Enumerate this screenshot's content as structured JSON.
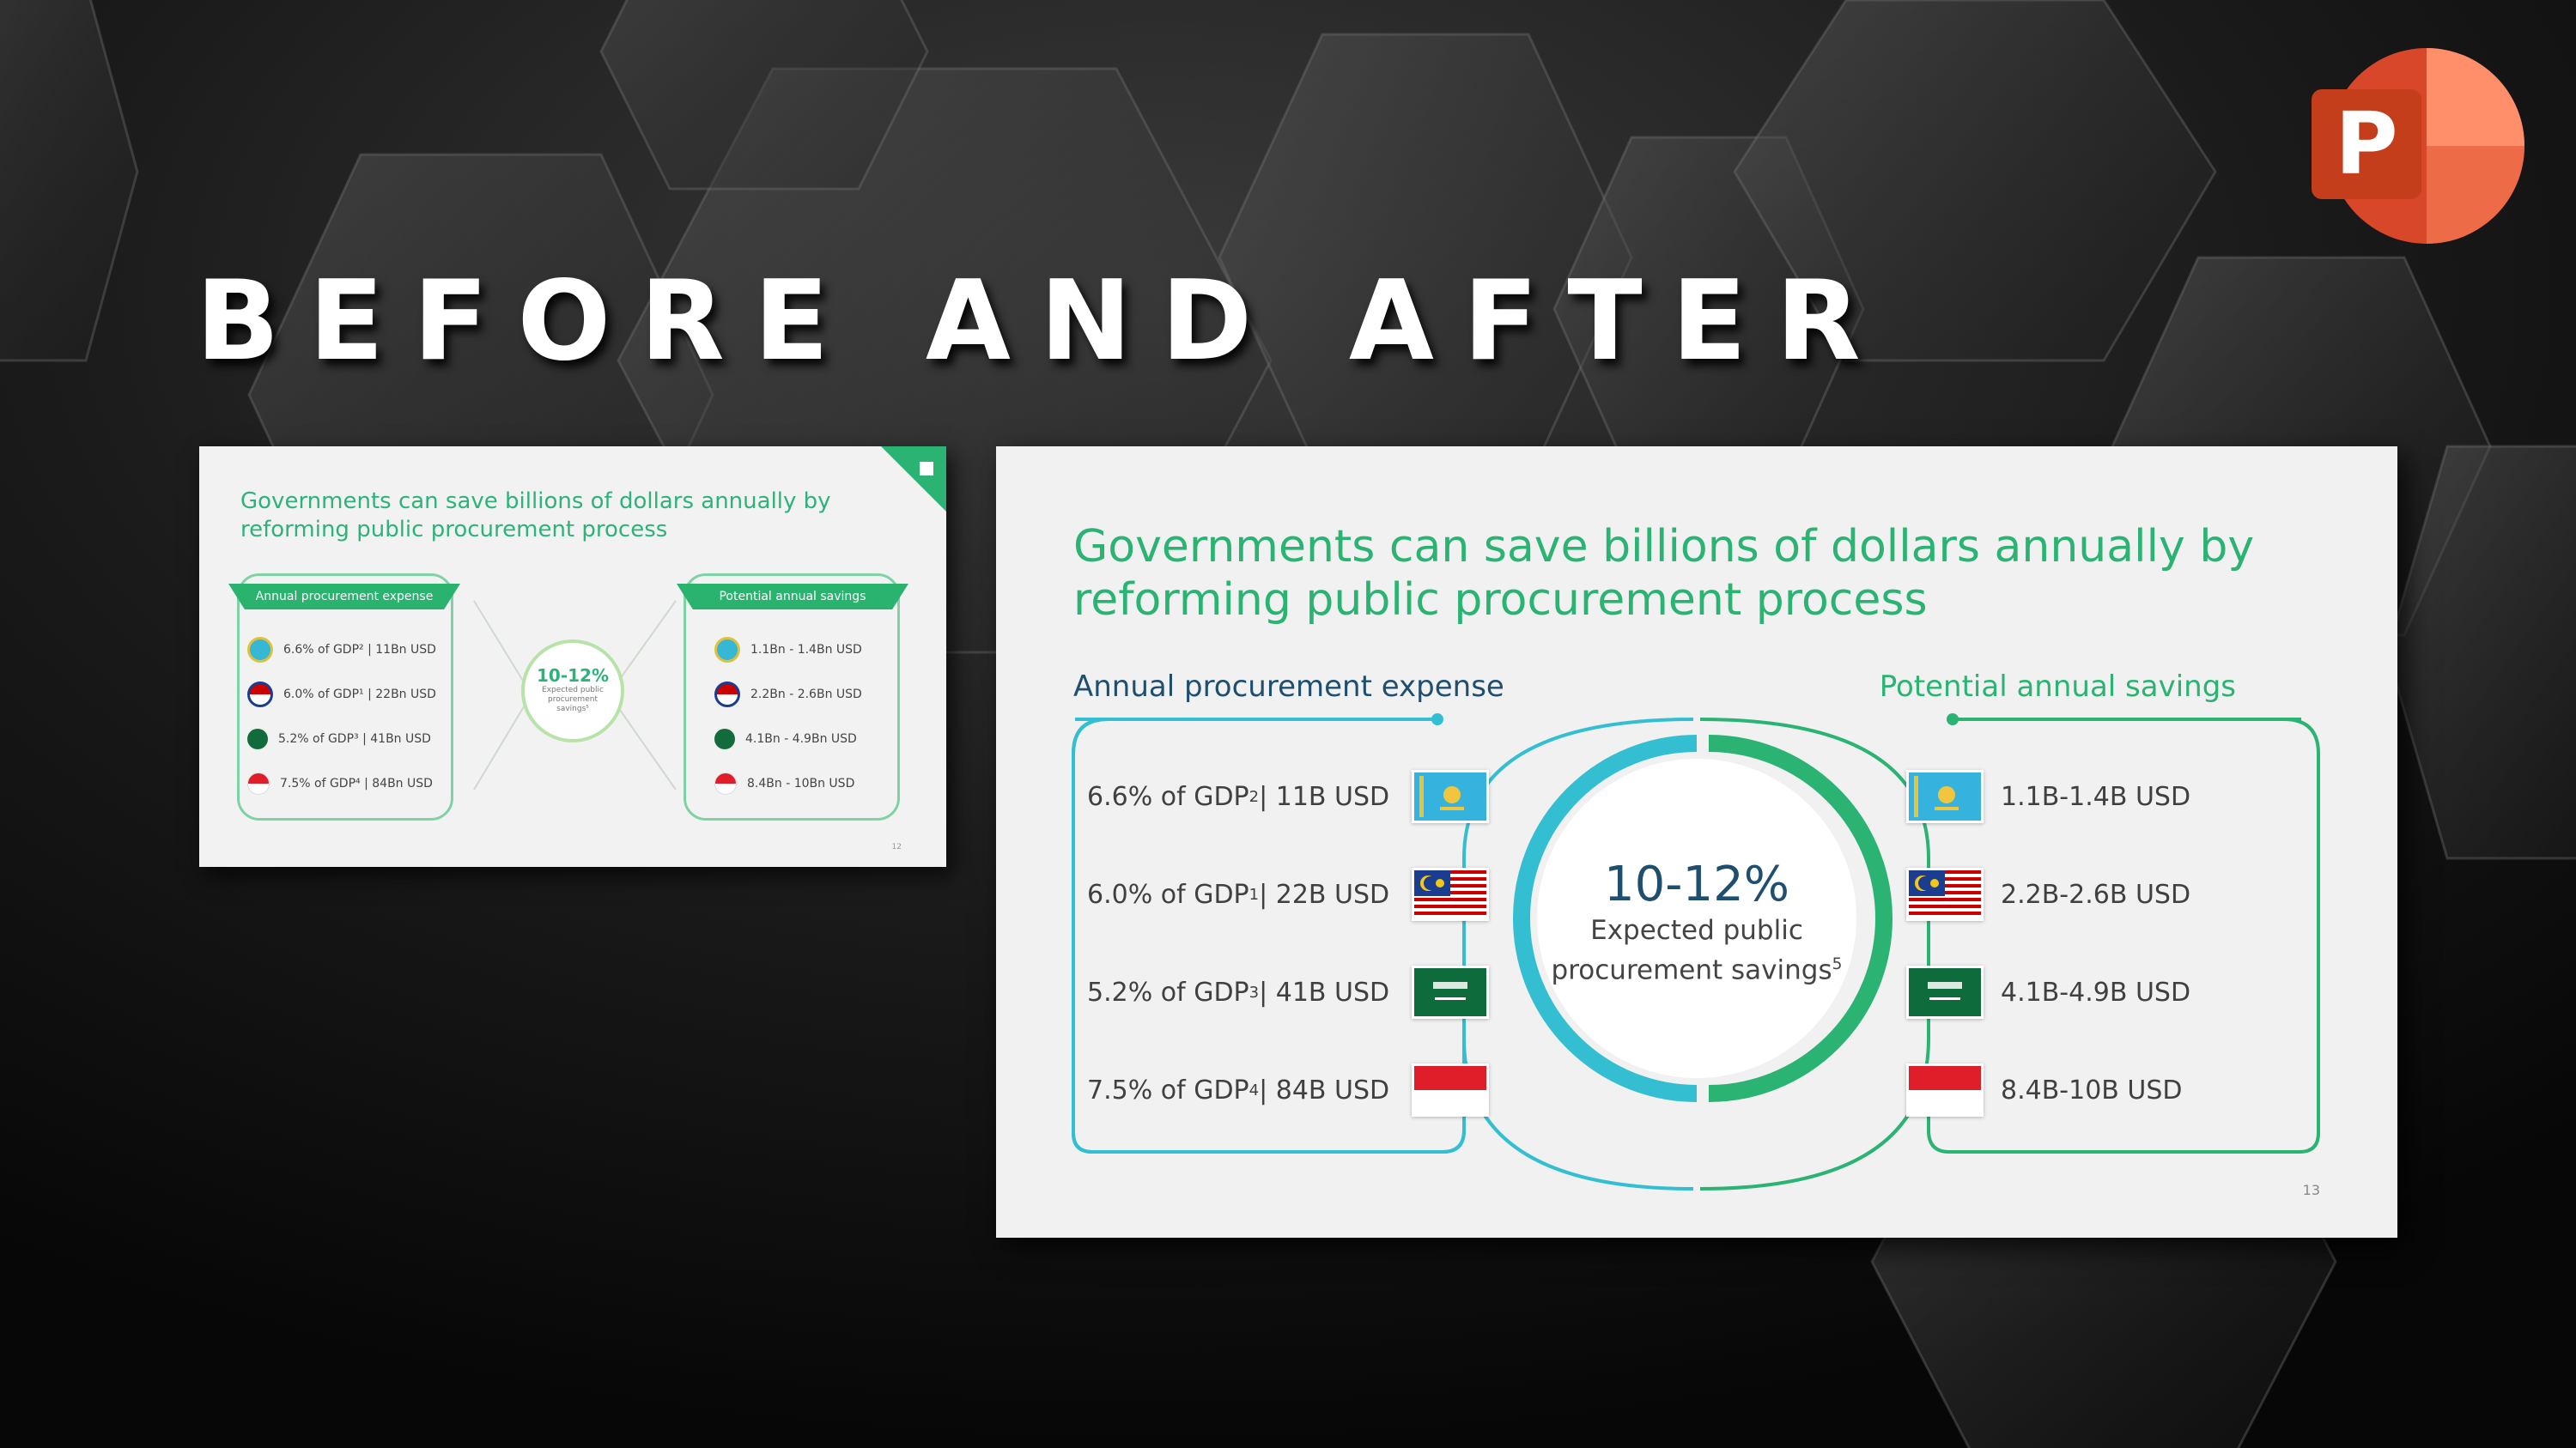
{
  "heading": "BEFORE AND AFTER",
  "app_icon": "powerpoint-logo-icon",
  "colors": {
    "green": "#2bb373",
    "teal": "#33bfd1",
    "navy": "#1f4e6e",
    "slide_bg": "#f1f1f1"
  },
  "before_slide": {
    "title": "Governments can save billions of dollars annually by reforming public procurement process",
    "left_tab": "Annual procurement expense",
    "right_tab": "Potential annual savings",
    "center_pct": "10-12%",
    "center_label": "Expected public procurement savings⁵",
    "rows_left": [
      {
        "text": "6.6% of GDP² | 11Bn USD"
      },
      {
        "text": "6.0% of GDP¹ | 22Bn USD"
      },
      {
        "text": "5.2% of GDP³ | 41Bn USD"
      },
      {
        "text": "7.5% of GDP⁴ | 84Bn USD"
      }
    ],
    "rows_right": [
      {
        "text": "1.1Bn - 1.4Bn USD"
      },
      {
        "text": "2.2Bn - 2.6Bn USD"
      },
      {
        "text": "4.1Bn - 4.9Bn USD"
      },
      {
        "text": "8.4Bn - 10Bn USD"
      }
    ],
    "page_number": "12"
  },
  "after_slide": {
    "title": "Governments can save billions of dollars annually by reforming public procurement process",
    "left_heading": "Annual procurement expense",
    "right_heading": "Potential annual savings",
    "center_pct": "10-12%",
    "center_label_1": "Expected public",
    "center_label_2": "procurement savings",
    "center_label_sup": "5",
    "rows_left": [
      {
        "main": "6.6% of GDP",
        "sup": "2",
        "rest": " | 11B USD",
        "flag": "kazakhstan-flag-icon"
      },
      {
        "main": "6.0% of GDP",
        "sup": "1",
        "rest": " | 22B USD",
        "flag": "malaysia-flag-icon"
      },
      {
        "main": "5.2% of GDP",
        "sup": "3",
        "rest": " | 41B USD",
        "flag": "saudi-arabia-flag-icon"
      },
      {
        "main": "7.5% of GDP",
        "sup": "4",
        "rest": " | 84B USD",
        "flag": "indonesia-flag-icon"
      }
    ],
    "rows_right": [
      {
        "text": "1.1B-1.4B USD",
        "flag": "kazakhstan-flag-icon"
      },
      {
        "text": "2.2B-2.6B USD",
        "flag": "malaysia-flag-icon"
      },
      {
        "text": "4.1B-4.9B USD",
        "flag": "saudi-arabia-flag-icon"
      },
      {
        "text": "8.4B-10B USD",
        "flag": "indonesia-flag-icon"
      }
    ],
    "page_number": "13"
  }
}
